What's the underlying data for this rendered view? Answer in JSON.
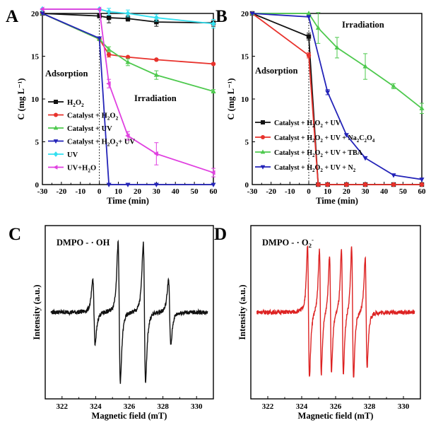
{
  "chart_data": [
    {
      "panel": "A",
      "type": "line",
      "xlabel": "Time (min)",
      "ylabel": "C (mg L⁻¹)",
      "xlim": [
        -30,
        60
      ],
      "ylim": [
        0,
        20
      ],
      "xticks": [
        "-30",
        "-20",
        "-10",
        "0",
        "10",
        "20",
        "30",
        "40",
        "50",
        "60"
      ],
      "yticks": [
        "0",
        "5",
        "10",
        "15",
        "20"
      ],
      "annotations": [
        "Adsorption",
        "Irradiation"
      ],
      "series": [
        {
          "name": "H2O2",
          "label_parts": [
            [
              "H",
              ""
            ],
            [
              "2",
              "sub"
            ],
            [
              "O",
              ""
            ],
            [
              "2",
              "sub"
            ]
          ],
          "color": "#111111",
          "marker": "square",
          "x": [
            -30,
            0,
            5,
            15,
            30,
            60
          ],
          "y": [
            20,
            19.7,
            19.5,
            19.4,
            19.0,
            18.9
          ],
          "err": [
            0,
            0,
            0.6,
            0.3,
            0.5,
            0.4
          ]
        },
        {
          "name": "Catalyst + H2O2",
          "label_parts": [
            [
              "Catalyst + H",
              ""
            ],
            [
              "2",
              "sub"
            ],
            [
              "O",
              ""
            ],
            [
              "2",
              "sub"
            ]
          ],
          "color": "#e8322c",
          "marker": "circle",
          "x": [
            -30,
            0,
            5,
            15,
            30,
            60
          ],
          "y": [
            20,
            17.0,
            15.2,
            14.9,
            14.6,
            14.1
          ],
          "err": [
            0,
            0,
            0.3,
            0,
            0,
            0
          ]
        },
        {
          "name": "Catalyst + UV",
          "label_parts": [
            [
              "Catalyst + UV",
              ""
            ]
          ],
          "color": "#4ec94e",
          "marker": "triangle-up",
          "x": [
            -30,
            0,
            5,
            15,
            30,
            60
          ],
          "y": [
            20,
            17.0,
            15.8,
            14.3,
            12.8,
            10.9
          ],
          "err": [
            0,
            0,
            0.3,
            0.4,
            0.5,
            0.2
          ]
        },
        {
          "name": "Catalyst + H2O2+ UV",
          "label_parts": [
            [
              "Catalyst + H",
              ""
            ],
            [
              "2",
              "sub"
            ],
            [
              "O",
              ""
            ],
            [
              "2",
              "sub"
            ],
            [
              "+ UV",
              ""
            ]
          ],
          "color": "#2323b8",
          "marker": "triangle-down",
          "x": [
            -30,
            0,
            5,
            15,
            30,
            60
          ],
          "y": [
            20,
            17.1,
            0,
            0,
            0,
            0
          ],
          "err": [
            0,
            0,
            0,
            0,
            0,
            0
          ]
        },
        {
          "name": "UV",
          "label_parts": [
            [
              "UV",
              ""
            ]
          ],
          "color": "#33e0f0",
          "marker": "diamond",
          "x": [
            -30,
            0,
            5,
            15,
            30,
            60
          ],
          "y": [
            20.5,
            20.5,
            20.2,
            20.0,
            19.5,
            18.8
          ],
          "err": [
            0,
            0,
            0.4,
            0.4,
            0.4,
            0.5
          ]
        },
        {
          "name": "UV+H2O",
          "label_parts": [
            [
              "UV+H",
              ""
            ],
            [
              "2",
              "sub"
            ],
            [
              "O",
              ""
            ]
          ],
          "color": "#e040e0",
          "marker": "triangle-left",
          "x": [
            -30,
            0,
            5,
            15,
            30,
            60
          ],
          "y": [
            20.5,
            20.5,
            11.8,
            5.7,
            3.6,
            1.4
          ],
          "err": [
            0,
            0,
            0.5,
            0.5,
            1.3,
            0.5
          ]
        }
      ]
    },
    {
      "panel": "B",
      "type": "line",
      "xlabel": "Time (min)",
      "ylabel": "C (mg L⁻¹)",
      "xlim": [
        -30,
        60
      ],
      "ylim": [
        0,
        20
      ],
      "xticks": [
        "-30",
        "-20",
        "-10",
        "0",
        "10",
        "20",
        "30",
        "40",
        "50",
        "60"
      ],
      "yticks": [
        "0",
        "5",
        "10",
        "15",
        "20"
      ],
      "annotations": [
        "Adsorption",
        "Irradiation"
      ],
      "series": [
        {
          "name": "Catalyst + H2O2 + UV",
          "label_parts": [
            [
              "Catalyst + H",
              ""
            ],
            [
              "2",
              "sub"
            ],
            [
              "O",
              ""
            ],
            [
              "2",
              "sub"
            ],
            [
              " + UV",
              ""
            ]
          ],
          "color": "#111111",
          "marker": "square",
          "x": [
            -30,
            0,
            5,
            10,
            20,
            30,
            45,
            60
          ],
          "y": [
            20,
            17.3,
            0,
            0,
            0,
            0,
            0,
            0
          ],
          "err": [
            0,
            0.4,
            0,
            0,
            0,
            0,
            0,
            0
          ]
        },
        {
          "name": "Catalyst + H2O2 + UV + Na2C2O4",
          "label_parts": [
            [
              "Catalyst + H",
              ""
            ],
            [
              "2",
              "sub"
            ],
            [
              "O",
              ""
            ],
            [
              "2",
              "sub"
            ],
            [
              " + UV + Na",
              ""
            ],
            [
              "2",
              "sub"
            ],
            [
              "C",
              ""
            ],
            [
              "2",
              "sub"
            ],
            [
              "O",
              ""
            ],
            [
              "4",
              "sub"
            ]
          ],
          "color": "#e8322c",
          "marker": "circle",
          "x": [
            -30,
            0,
            5,
            10,
            20,
            30,
            45,
            60
          ],
          "y": [
            20,
            15.1,
            0,
            0,
            0,
            0,
            0,
            0
          ],
          "err": [
            0,
            0.3,
            0,
            0,
            0,
            0,
            0,
            0
          ]
        },
        {
          "name": "Catalyst + H2O2 + UV + TBA",
          "label_parts": [
            [
              "Catalyst + H",
              ""
            ],
            [
              "2",
              "sub"
            ],
            [
              "O",
              ""
            ],
            [
              "2",
              "sub"
            ],
            [
              " + UV + TBA",
              ""
            ]
          ],
          "color": "#4ec94e",
          "marker": "triangle-up",
          "x": [
            -30,
            0,
            5,
            15,
            30,
            45,
            60
          ],
          "y": [
            20,
            20,
            18.3,
            16.0,
            13.8,
            11.5,
            8.9
          ],
          "err": [
            0,
            0,
            1.8,
            1.2,
            1.5,
            0.3,
            0.6
          ]
        },
        {
          "name": "Catalyst + H2O2 + UV + N2",
          "label_parts": [
            [
              "Catalyst + H",
              ""
            ],
            [
              "2",
              "sub"
            ],
            [
              "O",
              ""
            ],
            [
              "2",
              "sub"
            ],
            [
              " + UV + N",
              ""
            ],
            [
              "2",
              "sub"
            ]
          ],
          "color": "#2323b8",
          "marker": "triangle-down",
          "x": [
            -30,
            0,
            10,
            20,
            30,
            45,
            60
          ],
          "y": [
            20,
            19.6,
            10.8,
            5.8,
            3.1,
            1.1,
            0.6
          ],
          "err": [
            0,
            0,
            0.3,
            0,
            0,
            0,
            0
          ]
        }
      ]
    },
    {
      "panel": "C",
      "type": "line",
      "title": "DMPO - · OH",
      "title_parts": [
        [
          "DMPO - · OH",
          ""
        ]
      ],
      "xlabel": "Magnetic field (mT)",
      "ylabel": "Intensity (a.u.)",
      "xlim": [
        321,
        331
      ],
      "xticks": [
        "322",
        "324",
        "326",
        "328",
        "330"
      ],
      "line_color": "#111111",
      "baseline": 0.0,
      "ylim": [
        -1.0,
        1.0
      ],
      "peaks": [
        {
          "center": 323.9,
          "amplitude": 0.45,
          "width": 0.12
        },
        {
          "center": 325.4,
          "amplitude": 0.95,
          "width": 0.12
        },
        {
          "center": 326.9,
          "amplitude": 0.95,
          "width": 0.12
        },
        {
          "center": 328.4,
          "amplitude": 0.45,
          "width": 0.12
        }
      ]
    },
    {
      "panel": "D",
      "type": "line",
      "title": "DMPO - · O2-",
      "title_parts": [
        [
          "DMPO - · O",
          ""
        ],
        [
          "2",
          "sub"
        ],
        [
          "-",
          "sup"
        ]
      ],
      "xlabel": "Magnetic field (mT)",
      "ylabel": "Intensity (a.u.)",
      "xlim": [
        321,
        331
      ],
      "xticks": [
        "322",
        "324",
        "326",
        "328",
        "330"
      ],
      "line_color": "#dd2222",
      "baseline": 0.0,
      "ylim": [
        -1.0,
        1.0
      ],
      "peaks": [
        {
          "center": 324.4,
          "amplitude": 0.9,
          "width": 0.1
        },
        {
          "center": 325.1,
          "amplitude": 0.85,
          "width": 0.1
        },
        {
          "center": 325.7,
          "amplitude": 0.8,
          "width": 0.1
        },
        {
          "center": 326.4,
          "amplitude": 0.85,
          "width": 0.1
        },
        {
          "center": 327.0,
          "amplitude": 0.9,
          "width": 0.1
        },
        {
          "center": 327.8,
          "amplitude": 0.75,
          "width": 0.1
        }
      ]
    }
  ]
}
